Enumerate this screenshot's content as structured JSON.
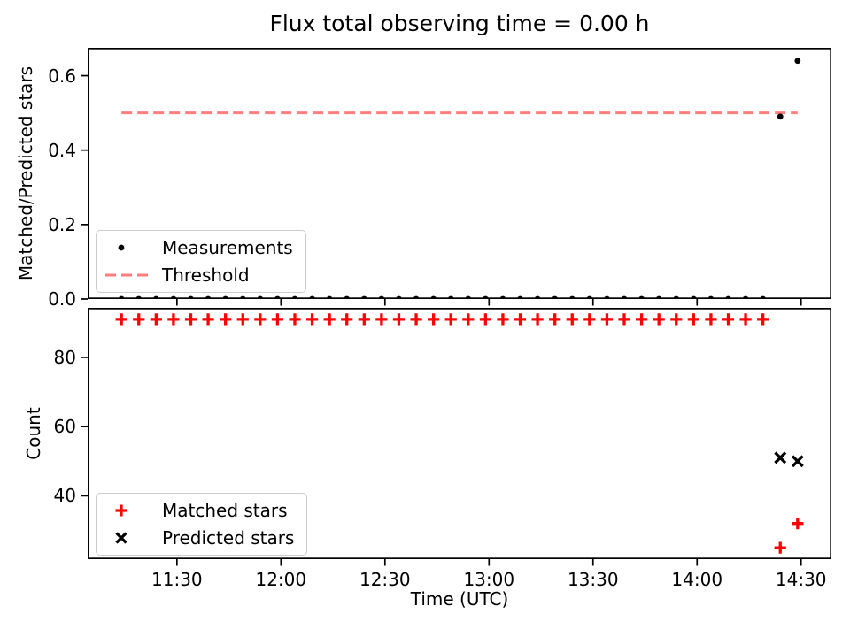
{
  "colors": {
    "black": "#000000",
    "red": "#ff0000",
    "threshold_red": "#ff7f7f",
    "legend_border": "#cccccc",
    "background": "#ffffff"
  },
  "chart_data": [
    {
      "type": "scatter",
      "title": "Flux total observing time = 0.00 h",
      "ylabel": "Matched/Predicted stars",
      "ylim": [
        0,
        0.675
      ],
      "yticks": [
        0.0,
        0.2,
        0.4,
        0.6
      ],
      "ytick_labels": [
        "0.0",
        "0.2",
        "0.4",
        "0.6"
      ],
      "x_tick_labels": [
        "11:30",
        "12:00",
        "12:30",
        "13:00",
        "13:30",
        "14:00",
        "14:30"
      ],
      "x_tick_labels_shown": false,
      "xlim_minutes": [
        664.25,
        878.75
      ],
      "grid": false,
      "legend_loc": "lower left",
      "series": [
        {
          "name": "Threshold",
          "marker": "dashed-line",
          "color": "#ff7f7f",
          "y_value": 0.5,
          "x_start": "11:14",
          "x_end": "14:29"
        },
        {
          "name": "Measurements",
          "marker": "dot",
          "color": "#000000",
          "x": [
            "11:14",
            "11:19",
            "11:24",
            "11:29",
            "11:34",
            "11:39",
            "11:44",
            "11:49",
            "11:54",
            "11:59",
            "12:04",
            "12:09",
            "12:14",
            "12:19",
            "12:24",
            "12:29",
            "12:34",
            "12:39",
            "12:44",
            "12:49",
            "12:54",
            "12:59",
            "13:04",
            "13:09",
            "13:14",
            "13:19",
            "13:24",
            "13:29",
            "13:34",
            "13:39",
            "13:44",
            "13:49",
            "13:54",
            "13:59",
            "14:04",
            "14:09",
            "14:14",
            "14:19",
            "14:24",
            "14:29"
          ],
          "y": [
            0,
            0,
            0,
            0,
            0,
            0,
            0,
            0,
            0,
            0,
            0,
            0,
            0,
            0,
            0,
            0,
            0,
            0,
            0,
            0,
            0,
            0,
            0,
            0,
            0,
            0,
            0,
            0,
            0,
            0,
            0,
            0,
            0,
            0,
            0,
            0,
            0,
            0,
            0.49,
            0.64
          ]
        }
      ]
    },
    {
      "type": "scatter",
      "ylabel": "Count",
      "xlabel": "Time (UTC)",
      "ylim": [
        21.7,
        94.3
      ],
      "yticks": [
        40,
        60,
        80
      ],
      "ytick_labels": [
        "40",
        "60",
        "80"
      ],
      "x_tick_labels": [
        "11:30",
        "12:00",
        "12:30",
        "13:00",
        "13:30",
        "14:00",
        "14:30"
      ],
      "x_tick_labels_shown": true,
      "xlim_minutes": [
        664.25,
        878.75
      ],
      "grid": false,
      "legend_loc": "lower left",
      "series": [
        {
          "name": "Matched stars",
          "marker": "plus",
          "color": "#ff0000",
          "x": [
            "11:14",
            "11:19",
            "11:24",
            "11:29",
            "11:34",
            "11:39",
            "11:44",
            "11:49",
            "11:54",
            "11:59",
            "12:04",
            "12:09",
            "12:14",
            "12:19",
            "12:24",
            "12:29",
            "12:34",
            "12:39",
            "12:44",
            "12:49",
            "12:54",
            "12:59",
            "13:04",
            "13:09",
            "13:14",
            "13:19",
            "13:24",
            "13:29",
            "13:34",
            "13:39",
            "13:44",
            "13:49",
            "13:54",
            "13:59",
            "14:04",
            "14:09",
            "14:14",
            "14:19",
            "14:24",
            "14:29"
          ],
          "y": [
            91,
            91,
            91,
            91,
            91,
            91,
            91,
            91,
            91,
            91,
            91,
            91,
            91,
            91,
            91,
            91,
            91,
            91,
            91,
            91,
            91,
            91,
            91,
            91,
            91,
            91,
            91,
            91,
            91,
            91,
            91,
            91,
            91,
            91,
            91,
            91,
            91,
            91,
            25,
            32
          ]
        },
        {
          "name": "Predicted stars",
          "marker": "x",
          "color": "#000000",
          "x": [
            "14:24",
            "14:29"
          ],
          "y": [
            51,
            50
          ]
        }
      ]
    }
  ]
}
